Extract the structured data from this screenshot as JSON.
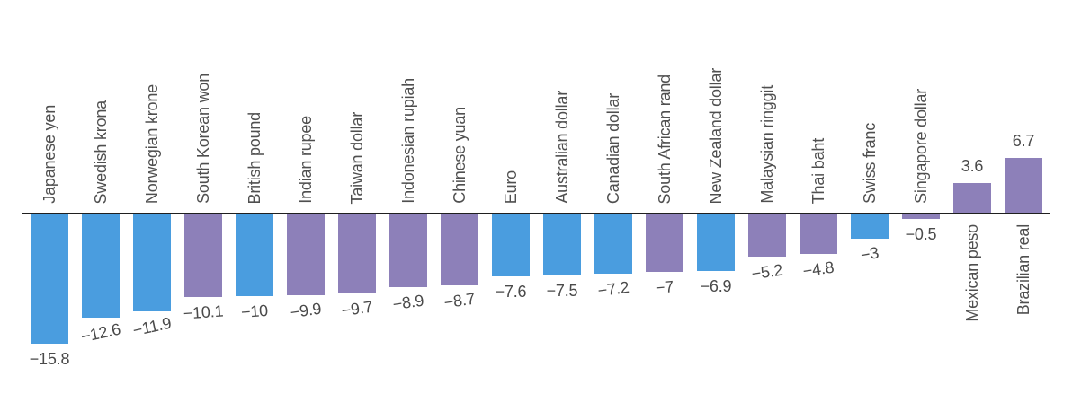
{
  "chart_data": {
    "type": "bar",
    "title": "",
    "xlabel": "",
    "ylabel": "",
    "orientation": "vertical-columns",
    "grid": "off",
    "legend": "none",
    "ylim": [
      -15.8,
      6.7
    ],
    "baseline": 0,
    "categories": [
      "Japanese yen",
      "Swedish krona",
      "Norwegian krone",
      "South Korean won",
      "British pound",
      "Indian rupee",
      "Taiwan dollar",
      "Indonesian rupiah",
      "Chinese yuan",
      "Euro",
      "Australian dollar",
      "Canadian dollar",
      "South African rand",
      "New Zealand dollar",
      "Malaysian ringgit",
      "Thai baht",
      "Swiss franc",
      "Singapore dollar",
      "Mexican peso",
      "Brazilian real"
    ],
    "values": [
      -15.8,
      -12.6,
      -11.9,
      -10.1,
      -10,
      -9.9,
      -9.7,
      -8.9,
      -8.7,
      -7.6,
      -7.5,
      -7.2,
      -7,
      -6.9,
      -5.2,
      -4.8,
      -3,
      -0.5,
      3.6,
      6.7
    ],
    "value_labels": [
      "−15.8",
      "−12.6",
      "−11.9",
      "−10.1",
      "−10",
      "−9.9",
      "−9.7",
      "−8.9",
      "−8.7",
      "−7.6",
      "−7.5",
      "−7.2",
      "−7",
      "−6.9",
      "−5.2",
      "−4.8",
      "−3",
      "−0.5",
      "3.6",
      "6.7"
    ],
    "bar_color_keys": [
      "blue",
      "blue",
      "blue",
      "purple",
      "blue",
      "purple",
      "purple",
      "purple",
      "purple",
      "blue",
      "blue",
      "blue",
      "purple",
      "blue",
      "purple",
      "purple",
      "blue",
      "purple",
      "purple",
      "purple"
    ],
    "value_label_angles": [
      0,
      -12,
      -12,
      -4,
      -4,
      -8,
      -8,
      -8,
      -8,
      0,
      0,
      -7,
      -5,
      0,
      -8,
      -8,
      -10,
      0,
      0,
      0
    ],
    "colors": {
      "blue": "#4a9ddf",
      "purple": "#8d80b9",
      "axis": "#1f1f1f",
      "category_text": "#4f4f4f",
      "value_text": "#4a4a4a"
    }
  }
}
